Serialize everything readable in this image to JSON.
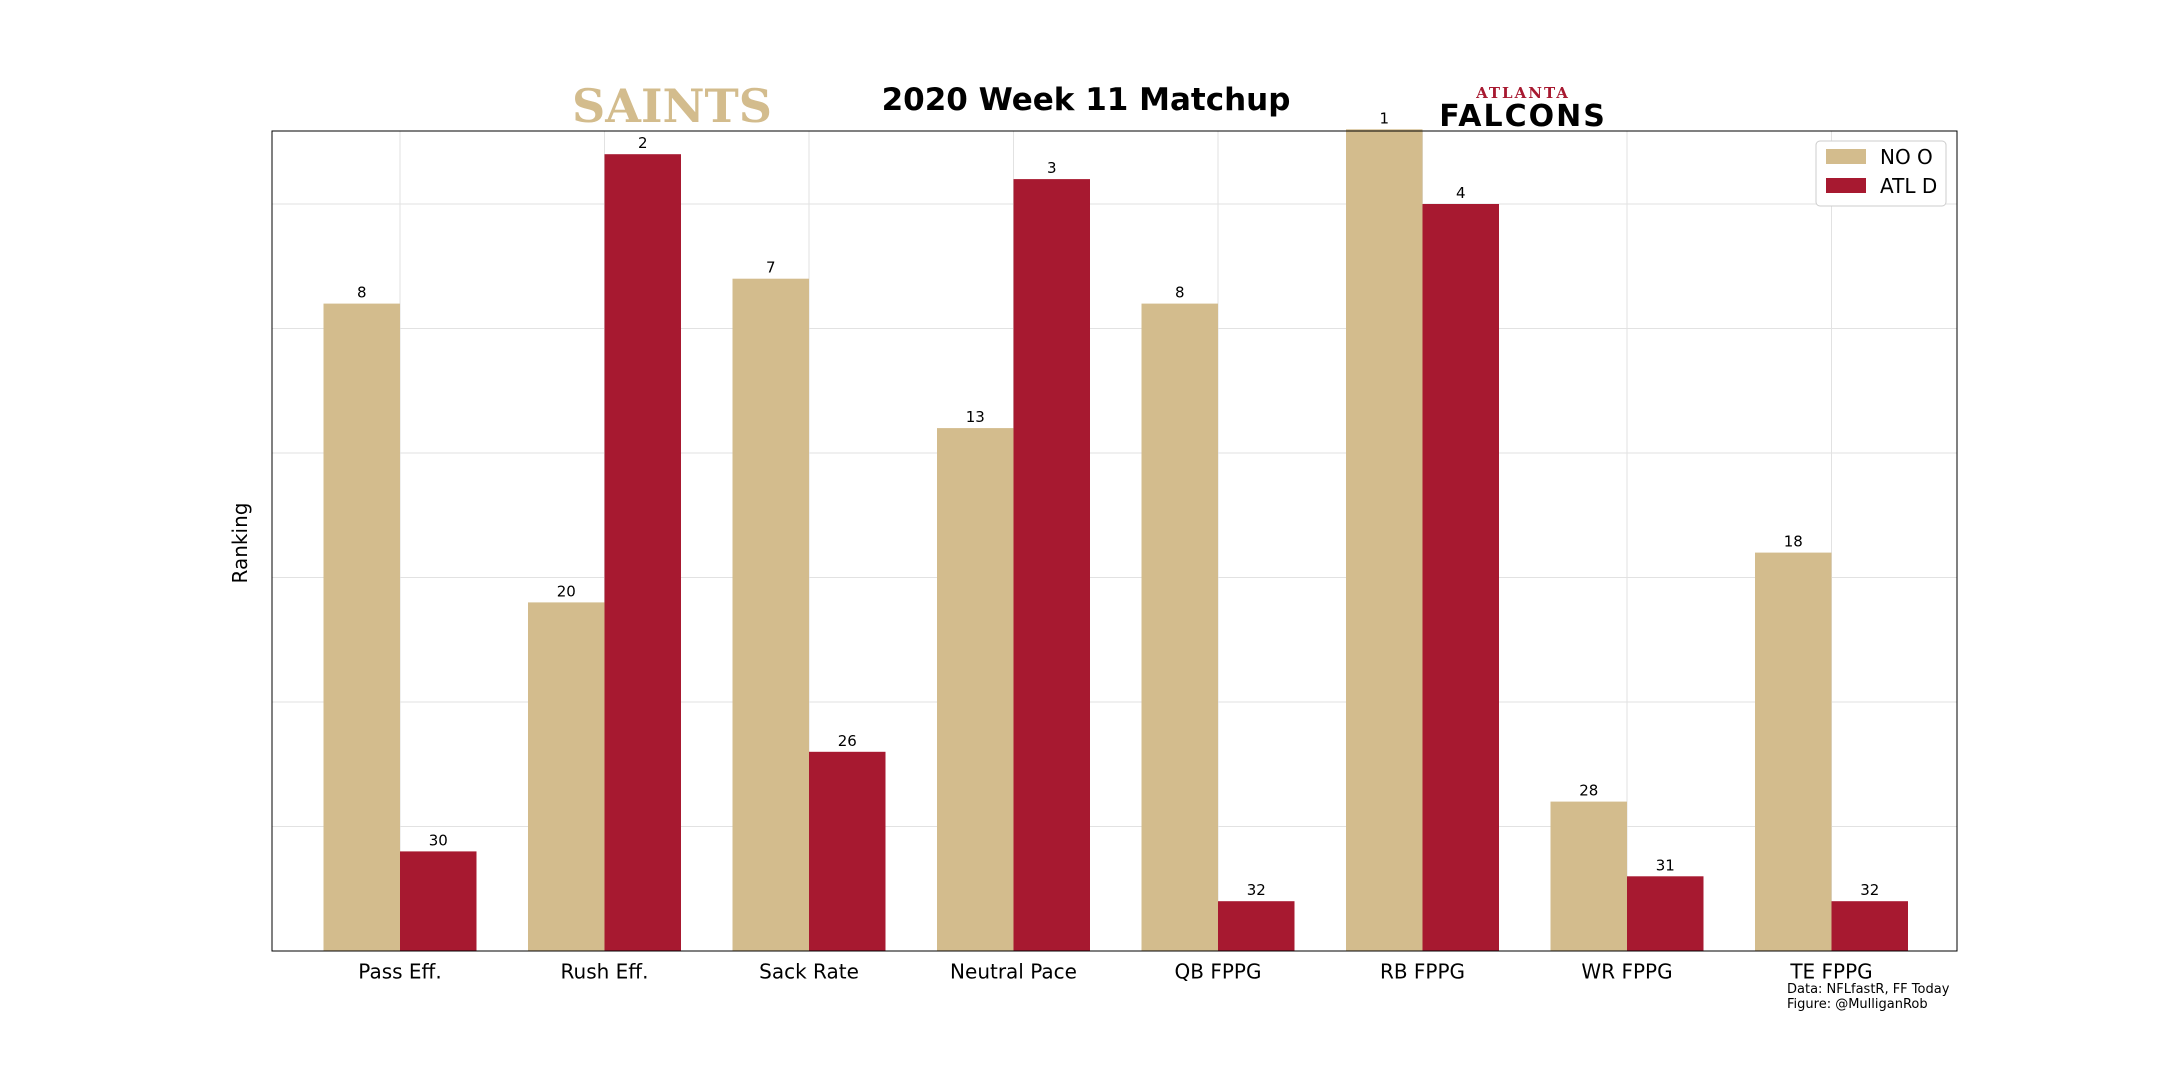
{
  "chart_data": {
    "type": "bar",
    "title": "2020 Week 11 Matchup",
    "ylabel": "Ranking",
    "xlabel": "",
    "categories": [
      "Pass Eff.",
      "Rush Eff.",
      "Sack Rate",
      "Neutral Pace",
      "QB FPPG",
      "RB FPPG",
      "WR FPPG",
      "TE FPPG"
    ],
    "series": [
      {
        "name": "NO O",
        "color": "#D3BC8D",
        "values": [
          8,
          20,
          7,
          13,
          8,
          1,
          28,
          18
        ]
      },
      {
        "name": "ATL D",
        "color": "#A71930",
        "values": [
          30,
          2,
          26,
          3,
          32,
          4,
          31,
          32
        ]
      }
    ],
    "value_axis": "inverted ranking, 1 at top, 34 at baseline",
    "grid": true,
    "legend_position": "top-right"
  },
  "logos": {
    "left": {
      "text": "SAINTS",
      "color": "#D3BC8D"
    },
    "right": {
      "top_text": "ATLANTA",
      "main_text": "FALCONS",
      "top_color": "#A71930",
      "main_color": "#000000"
    }
  },
  "notes": {
    "line1": "Data: NFLfastR, FF Today",
    "line2": "Figure: @MulliganRob"
  }
}
